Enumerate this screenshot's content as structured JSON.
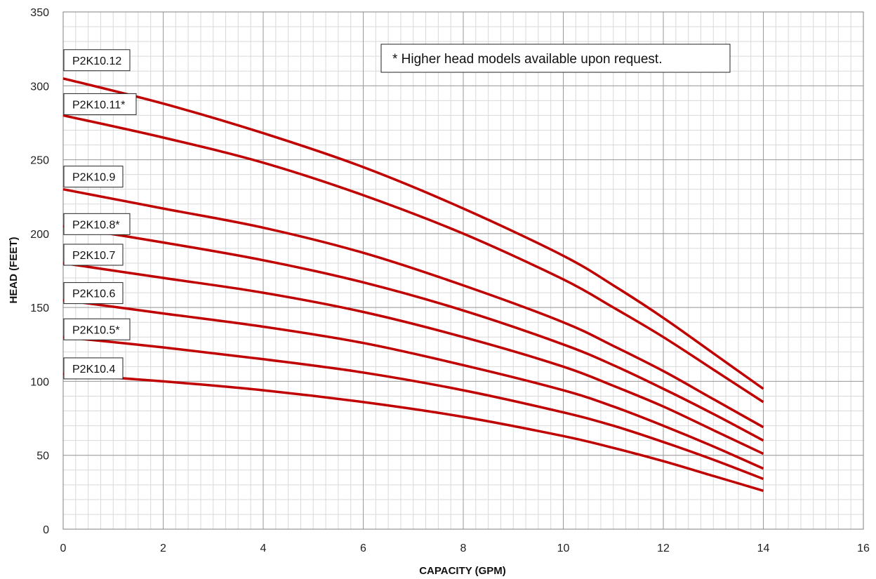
{
  "chart_data": {
    "type": "line",
    "title": "",
    "xlabel": "CAPACITY (GPM)",
    "ylabel": "HEAD (FEET)",
    "xlim": [
      0,
      16
    ],
    "ylim": [
      0,
      350
    ],
    "xticks": [
      0,
      2,
      4,
      6,
      8,
      10,
      12,
      14,
      16
    ],
    "yticks": [
      0,
      50,
      100,
      150,
      200,
      250,
      300,
      350
    ],
    "minor_grid": {
      "x_step": 0.25,
      "y_step": 10
    },
    "grid": true,
    "line_color": "#c00000",
    "annotation": "* Higher head models available upon request.",
    "series": [
      {
        "name": "P2K10.12",
        "x": [
          0,
          2,
          4,
          6,
          8,
          10,
          11,
          12,
          13,
          14
        ],
        "y": [
          305,
          288,
          268,
          245,
          217,
          185,
          165,
          143,
          119,
          95
        ]
      },
      {
        "name": "P2K10.11*",
        "x": [
          0,
          2,
          4,
          6,
          8,
          10,
          11,
          12,
          13,
          14
        ],
        "y": [
          280,
          265,
          248,
          226,
          200,
          169,
          150,
          130,
          108,
          86
        ]
      },
      {
        "name": "P2K10.9",
        "x": [
          0,
          2,
          4,
          6,
          8,
          10,
          11,
          12,
          13,
          14
        ],
        "y": [
          230,
          217,
          204,
          187,
          165,
          140,
          124,
          107,
          88,
          69
        ]
      },
      {
        "name": "P2K10.8*",
        "x": [
          0,
          2,
          4,
          6,
          8,
          10,
          11,
          12,
          13,
          14
        ],
        "y": [
          205,
          194,
          182,
          167,
          148,
          125,
          111,
          95,
          78,
          60
        ]
      },
      {
        "name": "P2K10.7",
        "x": [
          0,
          2,
          4,
          6,
          8,
          10,
          11,
          12,
          13,
          14
        ],
        "y": [
          180,
          170,
          160,
          147,
          130,
          110,
          97,
          83,
          67,
          51
        ]
      },
      {
        "name": "P2K10.6",
        "x": [
          0,
          2,
          4,
          6,
          8,
          10,
          11,
          12,
          13,
          14
        ],
        "y": [
          155,
          146,
          137,
          126,
          111,
          94,
          83,
          70,
          56,
          41
        ]
      },
      {
        "name": "P2K10.5*",
        "x": [
          0,
          2,
          4,
          6,
          8,
          10,
          11,
          12,
          13,
          14
        ],
        "y": [
          130,
          123,
          115,
          106,
          94,
          79,
          70,
          59,
          47,
          34
        ]
      },
      {
        "name": "P2K10.4",
        "x": [
          0,
          2,
          4,
          6,
          8,
          10,
          11,
          12,
          13,
          14
        ],
        "y": [
          105,
          100,
          94,
          86,
          76,
          63,
          55,
          46,
          36,
          26
        ]
      }
    ]
  }
}
